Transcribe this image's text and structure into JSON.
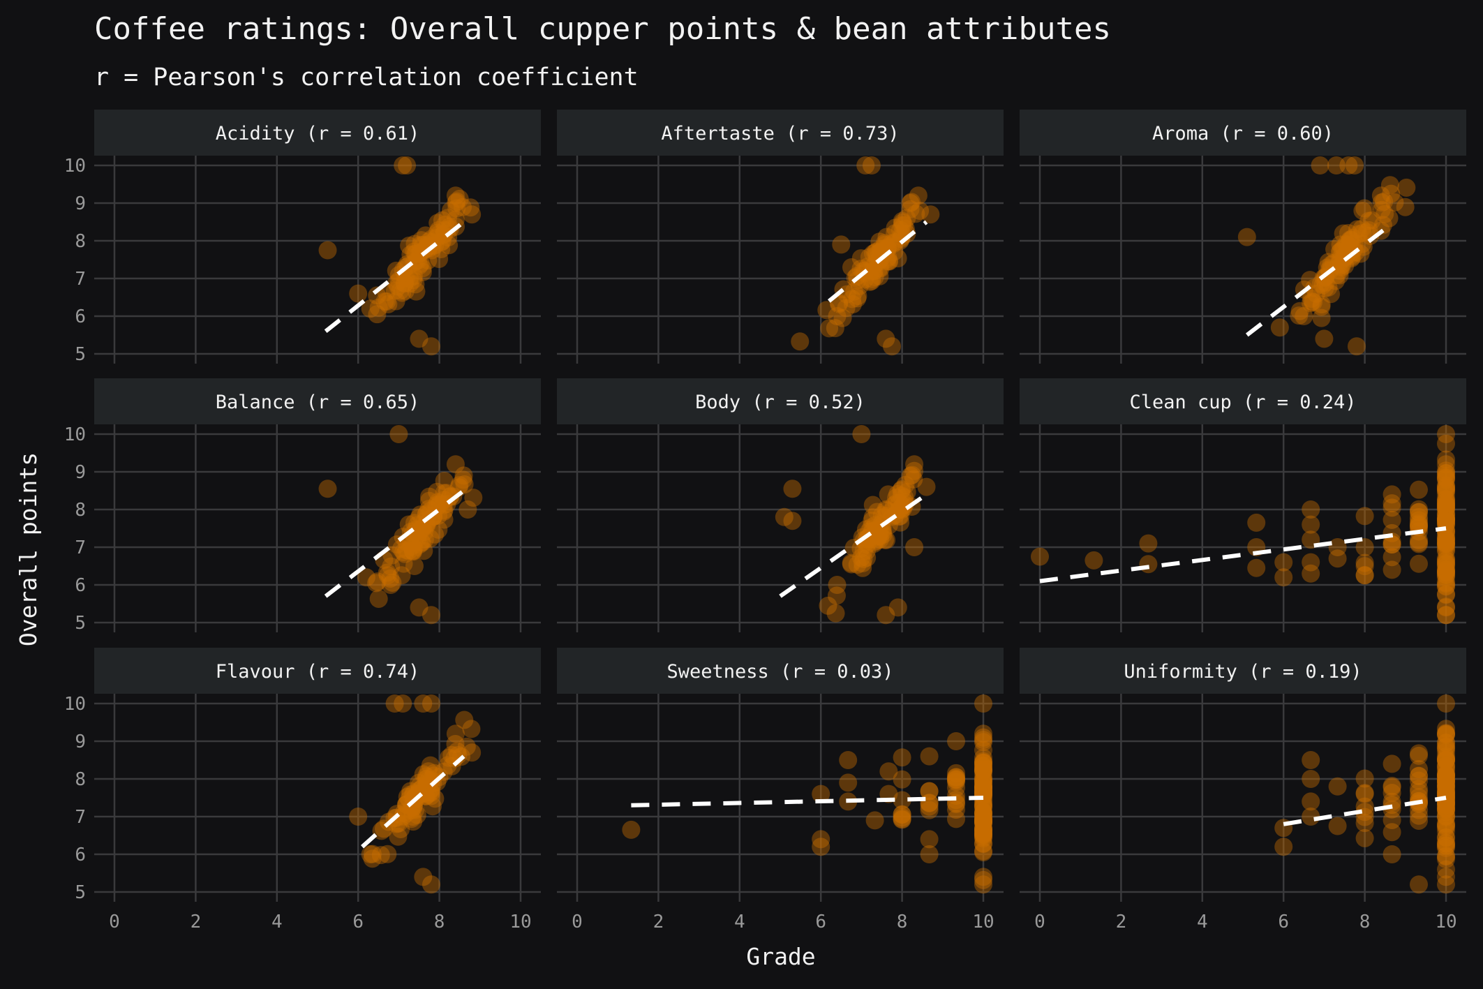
{
  "title": "Coffee ratings: Overall cupper points & bean attributes",
  "subtitle": "r = Pearson's correlation coefficient",
  "colors": {
    "background": "#111113",
    "strip": "#222527",
    "grid": "#3a3a3c",
    "point": "#c86e00",
    "trend": "#ffffff",
    "text": "#f2f2f2",
    "tick": "#9a9a9a"
  },
  "chart_data": {
    "type": "scatter",
    "xlabel": "Grade",
    "ylabel": "Overall points",
    "xlim": [
      0,
      10
    ],
    "ylim": [
      5,
      10
    ],
    "x_ticks": [
      "0",
      "2",
      "4",
      "6",
      "8",
      "10"
    ],
    "y_ticks": [
      "5",
      "6",
      "7",
      "8",
      "9",
      "10"
    ],
    "grid": true,
    "facets": [
      {
        "label": "Acidity (r = 0.61)",
        "trend": [
          [
            5.2,
            5.6
          ],
          [
            8.6,
            8.5
          ]
        ],
        "clusters": [
          {
            "cx": 7.6,
            "cy": 7.6,
            "sx": 0.55,
            "sy": 0.8,
            "n": 90
          }
        ],
        "points": [
          [
            5.25,
            7.75
          ],
          [
            7.1,
            10
          ],
          [
            7.2,
            10
          ],
          [
            6.0,
            6.6
          ],
          [
            6.3,
            6.2
          ],
          [
            7.5,
            5.4
          ],
          [
            7.8,
            5.2
          ],
          [
            8.4,
            9.2
          ],
          [
            8.8,
            8.7
          ]
        ]
      },
      {
        "label": "Aftertaste (r = 0.73)",
        "trend": [
          [
            6.2,
            6.4
          ],
          [
            8.6,
            8.5
          ]
        ],
        "clusters": [
          {
            "cx": 7.4,
            "cy": 7.5,
            "sx": 0.55,
            "sy": 0.85,
            "n": 90
          }
        ],
        "points": [
          [
            7.1,
            10
          ],
          [
            7.25,
            10
          ],
          [
            6.4,
            6.0
          ],
          [
            7.6,
            5.4
          ],
          [
            7.75,
            5.2
          ],
          [
            8.4,
            9.2
          ],
          [
            8.7,
            8.7
          ],
          [
            6.5,
            7.9
          ]
        ]
      },
      {
        "label": "Aroma (r = 0.60)",
        "trend": [
          [
            5.1,
            5.5
          ],
          [
            8.6,
            8.4
          ]
        ],
        "clusters": [
          {
            "cx": 7.5,
            "cy": 7.6,
            "sx": 0.55,
            "sy": 0.8,
            "n": 90
          }
        ],
        "points": [
          [
            5.1,
            8.1
          ],
          [
            6.9,
            10
          ],
          [
            7.3,
            10
          ],
          [
            7.6,
            10
          ],
          [
            7.75,
            10
          ],
          [
            6.5,
            6.0
          ],
          [
            7.0,
            5.4
          ],
          [
            7.8,
            5.2
          ],
          [
            8.4,
            9.2
          ],
          [
            8.6,
            8.6
          ]
        ]
      },
      {
        "label": "Balance (r = 0.65)",
        "trend": [
          [
            5.2,
            5.7
          ],
          [
            8.6,
            8.5
          ]
        ],
        "clusters": [
          {
            "cx": 7.6,
            "cy": 7.5,
            "sx": 0.55,
            "sy": 0.8,
            "n": 90
          }
        ],
        "points": [
          [
            5.25,
            8.55
          ],
          [
            7.0,
            10
          ],
          [
            6.8,
            6.0
          ],
          [
            7.5,
            5.4
          ],
          [
            7.8,
            5.2
          ],
          [
            8.4,
            9.2
          ],
          [
            8.6,
            8.9
          ],
          [
            8.7,
            8.0
          ],
          [
            6.2,
            6.2
          ]
        ]
      },
      {
        "label": "Body (r = 0.52)",
        "trend": [
          [
            5.0,
            5.7
          ],
          [
            8.6,
            8.4
          ]
        ],
        "clusters": [
          {
            "cx": 7.5,
            "cy": 7.5,
            "sx": 0.5,
            "sy": 0.8,
            "n": 90
          }
        ],
        "points": [
          [
            5.1,
            7.8
          ],
          [
            5.3,
            8.55
          ],
          [
            5.3,
            7.7
          ],
          [
            7.0,
            10
          ],
          [
            6.4,
            6.0
          ],
          [
            7.6,
            5.2
          ],
          [
            7.9,
            5.4
          ],
          [
            8.3,
            9.2
          ],
          [
            8.6,
            8.6
          ],
          [
            8.3,
            7.0
          ]
        ]
      },
      {
        "label": "Clean cup (r = 0.24)",
        "trend": [
          [
            0,
            6.1
          ],
          [
            10,
            7.5
          ]
        ],
        "clusters": [
          {
            "cx": 10,
            "cy": 7.6,
            "sx": 0.0,
            "sy": 0.9,
            "n": 80
          },
          {
            "cx": 9.33,
            "cy": 7.4,
            "sx": 0.0,
            "sy": 0.5,
            "n": 16
          },
          {
            "cx": 8.67,
            "cy": 7.3,
            "sx": 0.0,
            "sy": 0.5,
            "n": 8
          },
          {
            "cx": 8.0,
            "cy": 7.1,
            "sx": 0.0,
            "sy": 0.5,
            "n": 6
          }
        ],
        "points": [
          [
            0,
            6.75
          ],
          [
            1.33,
            6.65
          ],
          [
            2.67,
            7.1
          ],
          [
            2.67,
            6.55
          ],
          [
            5.33,
            7.65
          ],
          [
            5.33,
            6.45
          ],
          [
            5.33,
            7.0
          ],
          [
            6.0,
            6.2
          ],
          [
            6.0,
            6.6
          ],
          [
            6.67,
            8.0
          ],
          [
            6.67,
            7.6
          ],
          [
            6.67,
            7.2
          ],
          [
            6.67,
            6.6
          ],
          [
            6.67,
            6.3
          ],
          [
            7.33,
            6.7
          ],
          [
            7.33,
            7.0
          ],
          [
            10,
            10
          ],
          [
            10,
            5.2
          ],
          [
            10,
            5.4
          ],
          [
            10,
            9.2
          ],
          [
            8.67,
            8.4
          ],
          [
            8.67,
            6.4
          ]
        ]
      },
      {
        "label": "Flavour (r = 0.74)",
        "trend": [
          [
            6.1,
            6.2
          ],
          [
            8.6,
            8.6
          ]
        ],
        "clusters": [
          {
            "cx": 7.5,
            "cy": 7.5,
            "sx": 0.55,
            "sy": 0.85,
            "n": 90
          }
        ],
        "points": [
          [
            6.9,
            10
          ],
          [
            7.1,
            10
          ],
          [
            7.6,
            10
          ],
          [
            7.8,
            10
          ],
          [
            7.6,
            5.4
          ],
          [
            7.8,
            5.2
          ],
          [
            8.4,
            9.2
          ],
          [
            8.8,
            8.7
          ],
          [
            6.0,
            7.0
          ],
          [
            6.3,
            6.0
          ]
        ]
      },
      {
        "label": "Sweetness (r = 0.03)",
        "trend": [
          [
            1.33,
            7.3
          ],
          [
            10,
            7.5
          ]
        ],
        "clusters": [
          {
            "cx": 10,
            "cy": 7.6,
            "sx": 0.0,
            "sy": 0.8,
            "n": 80
          },
          {
            "cx": 9.33,
            "cy": 7.5,
            "sx": 0.0,
            "sy": 0.5,
            "n": 14
          },
          {
            "cx": 8.67,
            "cy": 7.4,
            "sx": 0.0,
            "sy": 0.4,
            "n": 6
          },
          {
            "cx": 8.0,
            "cy": 7.4,
            "sx": 0.0,
            "sy": 0.5,
            "n": 8
          }
        ],
        "points": [
          [
            1.33,
            6.65
          ],
          [
            6.0,
            7.6
          ],
          [
            6.0,
            6.4
          ],
          [
            6.0,
            6.2
          ],
          [
            6.67,
            8.5
          ],
          [
            6.67,
            7.9
          ],
          [
            6.67,
            7.4
          ],
          [
            7.33,
            6.9
          ],
          [
            7.67,
            8.2
          ],
          [
            7.67,
            7.6
          ],
          [
            8.67,
            8.6
          ],
          [
            8.67,
            6.0
          ],
          [
            8.67,
            6.4
          ],
          [
            10,
            10
          ],
          [
            10,
            5.2
          ],
          [
            10,
            5.4
          ],
          [
            10,
            9.2
          ],
          [
            9.33,
            9.0
          ]
        ]
      },
      {
        "label": "Uniformity (r = 0.19)",
        "trend": [
          [
            6.0,
            6.8
          ],
          [
            10,
            7.5
          ]
        ],
        "clusters": [
          {
            "cx": 10,
            "cy": 7.6,
            "sx": 0.0,
            "sy": 0.9,
            "n": 80
          },
          {
            "cx": 9.33,
            "cy": 7.5,
            "sx": 0.0,
            "sy": 0.55,
            "n": 16
          },
          {
            "cx": 8.67,
            "cy": 7.3,
            "sx": 0.0,
            "sy": 0.5,
            "n": 8
          },
          {
            "cx": 8.0,
            "cy": 7.2,
            "sx": 0.0,
            "sy": 0.5,
            "n": 8
          }
        ],
        "points": [
          [
            6.0,
            6.7
          ],
          [
            6.0,
            6.2
          ],
          [
            6.67,
            8.5
          ],
          [
            6.67,
            8.0
          ],
          [
            6.67,
            7.4
          ],
          [
            6.67,
            7.0
          ],
          [
            7.33,
            7.8
          ],
          [
            7.33,
            6.75
          ],
          [
            8.67,
            6.0
          ],
          [
            8.67,
            8.4
          ],
          [
            9.33,
            5.2
          ],
          [
            10,
            10
          ],
          [
            10,
            5.2
          ],
          [
            10,
            5.4
          ],
          [
            10,
            9.2
          ]
        ]
      }
    ]
  }
}
